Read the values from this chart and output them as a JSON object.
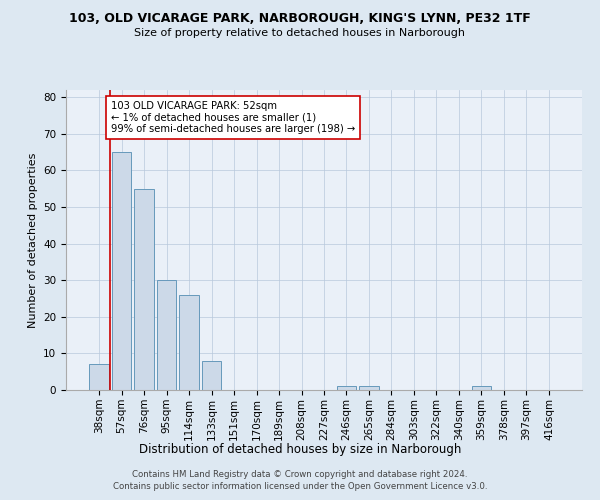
{
  "title1": "103, OLD VICARAGE PARK, NARBOROUGH, KING'S LYNN, PE32 1TF",
  "title2": "Size of property relative to detached houses in Narborough",
  "xlabel": "Distribution of detached houses by size in Narborough",
  "ylabel": "Number of detached properties",
  "categories": [
    "38sqm",
    "57sqm",
    "76sqm",
    "95sqm",
    "114sqm",
    "133sqm",
    "151sqm",
    "170sqm",
    "189sqm",
    "208sqm",
    "227sqm",
    "246sqm",
    "265sqm",
    "284sqm",
    "303sqm",
    "322sqm",
    "340sqm",
    "359sqm",
    "378sqm",
    "397sqm",
    "416sqm"
  ],
  "values": [
    7,
    65,
    55,
    30,
    26,
    8,
    0,
    0,
    0,
    0,
    0,
    1,
    1,
    0,
    0,
    0,
    0,
    1,
    0,
    0,
    0
  ],
  "bar_color": "#ccd9e8",
  "bar_edge_color": "#6699bb",
  "vline_x": 0.5,
  "annotation_title": "103 OLD VICARAGE PARK: 52sqm",
  "annotation_line1": "← 1% of detached houses are smaller (1)",
  "annotation_line2": "99% of semi-detached houses are larger (198) →",
  "vline_color": "#cc0000",
  "annotation_border_color": "#cc0000",
  "ylim": [
    0,
    82
  ],
  "yticks": [
    0,
    10,
    20,
    30,
    40,
    50,
    60,
    70,
    80
  ],
  "footer1": "Contains HM Land Registry data © Crown copyright and database right 2024.",
  "footer2": "Contains public sector information licensed under the Open Government Licence v3.0.",
  "bg_color": "#dde8f2",
  "plot_bg_color": "#eaf0f8"
}
